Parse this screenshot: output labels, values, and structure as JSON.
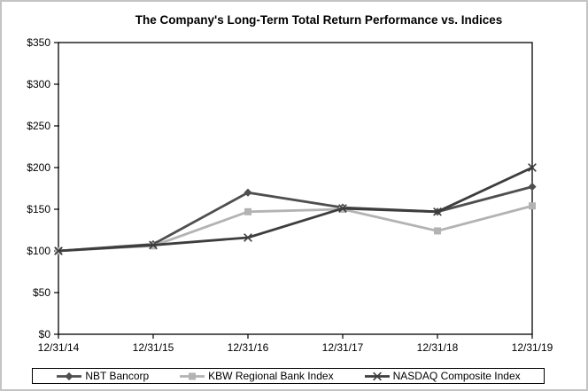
{
  "chart_data": {
    "type": "line",
    "title": "The Company's Long-Term Total Return Performance vs. Indices",
    "xlabel": "",
    "ylabel": "",
    "categories": [
      "12/31/14",
      "12/31/15",
      "12/31/16",
      "12/31/17",
      "12/31/18",
      "12/31/19"
    ],
    "series": [
      {
        "name": "NBT Bancorp",
        "marker": "diamond",
        "color": "#4f4f4f",
        "values": [
          100,
          108,
          170,
          152,
          147,
          177
        ]
      },
      {
        "name": "KBW Regional Bank Index",
        "marker": "square",
        "color": "#b3b3b3",
        "values": [
          100,
          106,
          147,
          150,
          124,
          154
        ]
      },
      {
        "name": "NASDAQ Composite Index",
        "marker": "x",
        "color": "#3d3d3d",
        "values": [
          100,
          107,
          116,
          151,
          147,
          200
        ]
      }
    ],
    "y_ticks": [
      {
        "label": "$350",
        "value": 350
      },
      {
        "label": "$300",
        "value": 300
      },
      {
        "label": "$250",
        "value": 250
      },
      {
        "label": "$200",
        "value": 200
      },
      {
        "label": "$150",
        "value": 150
      },
      {
        "label": "$100",
        "value": 100
      },
      {
        "label": "$50",
        "value": 50
      },
      {
        "label": "$0",
        "value": 0
      }
    ],
    "ylim": [
      0,
      350
    ],
    "grid": false,
    "legend_position": "bottom",
    "axis_color": "#000000",
    "background_color": "#ffffff"
  }
}
